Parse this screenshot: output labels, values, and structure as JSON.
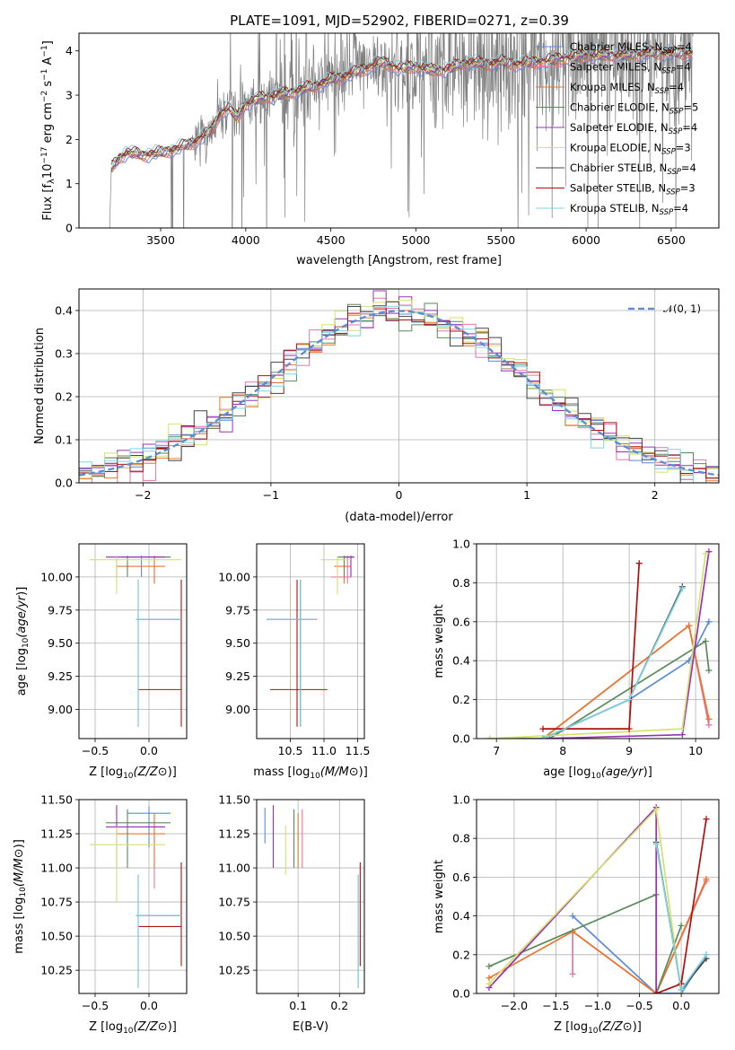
{
  "title": "PLATE=1091, MJD=52902, FIBERID=0271, z=0.39",
  "colors": {
    "Chabrier MILES": "#5b8bd6",
    "Salpeter MILES": "#e377a8",
    "Kroupa MILES": "#e9762d",
    "Chabrier ELODIE": "#5a8a5a",
    "Salpeter ELODIE": "#9b30b8",
    "Kroupa ELODIE": "#d4e26a",
    "Chabrier STELIB": "#444444",
    "Salpeter STELIB": "#b01010",
    "Kroupa STELIB": "#7fd4e0",
    "data": "#808080",
    "gauss": "#5b8bd6"
  },
  "legend_spectrum": [
    {
      "model": "Chabrier MILES",
      "sub": "SSP",
      "n": "4"
    },
    {
      "model": "Salpeter MILES",
      "sub": "SSP",
      "n": "4"
    },
    {
      "model": "Kroupa MILES",
      "sub": "SSP",
      "n": "4"
    },
    {
      "model": "Chabrier ELODIE",
      "sub": "SSP",
      "n": "5"
    },
    {
      "model": "Salpeter ELODIE",
      "sub": "SSP",
      "n": "4"
    },
    {
      "model": "Kroupa ELODIE",
      "sub": "SSP",
      "n": "3"
    },
    {
      "model": "Chabrier STELIB",
      "sub": "SSP",
      "n": "4"
    },
    {
      "model": "Salpeter STELIB",
      "sub": "SSP",
      "n": "3"
    },
    {
      "model": "Kroupa STELIB",
      "sub": "SSP",
      "n": "4"
    }
  ],
  "legend_hist": "𝒩(0, 1)",
  "chart_data": [
    {
      "id": "spectrum",
      "type": "line",
      "xlabel": "wavelength [Angstrom, rest frame]",
      "ylabel": "Flux [f",
      "xlim": [
        3020,
        6780
      ],
      "ylim": [
        0,
        4.4
      ],
      "xticks": [
        3500,
        4000,
        4500,
        5000,
        5500,
        6000,
        6500
      ],
      "yticks": [
        0,
        1,
        2,
        3,
        4
      ],
      "data_start": 3200,
      "model_continuum": [
        [
          3200,
          0.0
        ],
        [
          3210,
          1.35
        ],
        [
          3260,
          1.6
        ],
        [
          3300,
          1.7
        ],
        [
          3400,
          1.65
        ],
        [
          3500,
          1.7
        ],
        [
          3600,
          1.8
        ],
        [
          3700,
          1.95
        ],
        [
          3800,
          2.2
        ],
        [
          3850,
          2.6
        ],
        [
          3900,
          2.7
        ],
        [
          3950,
          2.5
        ],
        [
          4000,
          2.8
        ],
        [
          4100,
          2.95
        ],
        [
          4200,
          3.0
        ],
        [
          4300,
          3.1
        ],
        [
          4400,
          3.2
        ],
        [
          4500,
          3.35
        ],
        [
          4600,
          3.45
        ],
        [
          4700,
          3.6
        ],
        [
          4800,
          3.75
        ],
        [
          4900,
          3.6
        ],
        [
          5000,
          3.65
        ],
        [
          5100,
          3.55
        ],
        [
          5200,
          3.6
        ],
        [
          5300,
          3.75
        ],
        [
          5400,
          3.7
        ],
        [
          5500,
          3.75
        ],
        [
          5600,
          3.7
        ],
        [
          5700,
          3.75
        ],
        [
          5800,
          3.8
        ],
        [
          5900,
          3.85
        ],
        [
          6000,
          3.9
        ],
        [
          6200,
          3.9
        ],
        [
          6400,
          3.95
        ],
        [
          6600,
          3.95
        ]
      ]
    },
    {
      "id": "residual_hist",
      "type": "histogram",
      "xlabel": "(data-model)/error",
      "ylabel": "Normed distribution",
      "xlim": [
        -2.5,
        2.5
      ],
      "ylim": [
        0,
        0.45
      ],
      "xticks": [
        -2,
        -1,
        0,
        1,
        2
      ],
      "yticks": [
        0.0,
        0.1,
        0.2,
        0.3,
        0.4
      ],
      "bin_width": 0.1
    },
    {
      "id": "age_vs_Z",
      "type": "errorbar",
      "xlabel": "Z [log",
      "ylabel": "age  [log",
      "xlim": [
        -0.65,
        0.35
      ],
      "ylim": [
        8.78,
        10.25
      ],
      "xticks": [
        -0.5,
        0.0
      ],
      "yticks": [
        9.0,
        9.25,
        9.5,
        9.75,
        10.0
      ],
      "points": [
        {
          "m": "Chabrier MILES",
          "x": -0.07,
          "xl": -0.3,
          "xh": 0.2,
          "y": 10.15,
          "yl": 10.0,
          "yh": 10.16
        },
        {
          "m": "Salpeter MILES",
          "x": 0.05,
          "xl": -0.2,
          "xh": 0.15,
          "y": 10.15,
          "yl": 9.95,
          "yh": 10.16
        },
        {
          "m": "Kroupa MILES",
          "x": 0.05,
          "xl": -0.3,
          "xh": 0.15,
          "y": 10.08,
          "yl": 9.95,
          "yh": 10.16
        },
        {
          "m": "Chabrier ELODIE",
          "x": -0.2,
          "xl": -0.4,
          "xh": 0.2,
          "y": 10.15,
          "yl": 10.0,
          "yh": 10.16
        },
        {
          "m": "Salpeter ELODIE",
          "x": -0.3,
          "xl": -0.4,
          "xh": 0.15,
          "y": 10.15,
          "yl": 10.0,
          "yh": 10.16
        },
        {
          "m": "Kroupa ELODIE",
          "x": -0.3,
          "xl": -0.55,
          "xh": 0.3,
          "y": 10.13,
          "yl": 9.87,
          "yh": 10.16
        },
        {
          "m": "Chabrier STELIB",
          "x": -0.1,
          "xl": -0.12,
          "xh": 0.3,
          "y": 9.68,
          "yl": 8.87,
          "yh": 9.98
        },
        {
          "m": "Salpeter STELIB",
          "x": 0.3,
          "xl": -0.1,
          "xh": 0.3,
          "y": 9.15,
          "yl": 8.87,
          "yh": 9.98
        },
        {
          "m": "Kroupa STELIB",
          "x": -0.1,
          "xl": -0.12,
          "xh": 0.3,
          "y": 9.68,
          "yl": 8.87,
          "yh": 9.98
        }
      ]
    },
    {
      "id": "age_vs_mass",
      "type": "errorbar",
      "xlabel": "mass [log",
      "ylabel": "",
      "xlim": [
        10.0,
        11.6
      ],
      "ylim": [
        8.78,
        10.25
      ],
      "xticks": [
        10.5,
        11.0,
        11.5
      ],
      "yticks": [
        9.0,
        9.25,
        9.5,
        9.75,
        10.0
      ],
      "points": [
        {
          "m": "Chabrier MILES",
          "x": 11.4,
          "xl": 11.2,
          "xh": 11.45,
          "y": 10.15,
          "yl": 10.0,
          "yh": 10.16
        },
        {
          "m": "Salpeter MILES",
          "x": 11.35,
          "xl": 11.1,
          "xh": 11.4,
          "y": 10.0,
          "yl": 9.95,
          "yh": 10.16
        },
        {
          "m": "Kroupa MILES",
          "x": 11.3,
          "xl": 11.15,
          "xh": 11.4,
          "y": 10.08,
          "yl": 9.95,
          "yh": 10.16
        },
        {
          "m": "Chabrier ELODIE",
          "x": 11.3,
          "xl": 11.2,
          "xh": 11.45,
          "y": 10.15,
          "yl": 10.0,
          "yh": 10.16
        },
        {
          "m": "Salpeter ELODIE",
          "x": 11.4,
          "xl": 11.3,
          "xh": 11.45,
          "y": 10.15,
          "yl": 10.0,
          "yh": 10.16
        },
        {
          "m": "Kroupa ELODIE",
          "x": 11.2,
          "xl": 10.95,
          "xh": 11.4,
          "y": 10.13,
          "yl": 9.87,
          "yh": 10.16
        },
        {
          "m": "Chabrier STELIB",
          "x": 10.65,
          "xl": 10.15,
          "xh": 10.9,
          "y": 9.68,
          "yl": 8.87,
          "yh": 9.98
        },
        {
          "m": "Salpeter STELIB",
          "x": 10.6,
          "xl": 10.2,
          "xh": 11.05,
          "y": 9.15,
          "yl": 8.87,
          "yh": 9.98
        },
        {
          "m": "Kroupa STELIB",
          "x": 10.65,
          "xl": 10.15,
          "xh": 10.9,
          "y": 9.68,
          "yl": 8.87,
          "yh": 9.98
        }
      ]
    },
    {
      "id": "massweight_vs_age",
      "type": "line",
      "xlabel": "age  [log",
      "ylabel": "mass weight",
      "xlim": [
        6.7,
        10.35
      ],
      "ylim": [
        0,
        1.0
      ],
      "xticks": [
        7,
        8,
        9,
        10
      ],
      "yticks": [
        0.0,
        0.2,
        0.4,
        0.6,
        0.8,
        1.0
      ],
      "series": [
        {
          "m": "Chabrier MILES",
          "pts": [
            [
              7.7,
              0.0
            ],
            [
              9.0,
              0.2
            ],
            [
              9.9,
              0.4
            ],
            [
              10.2,
              0.6
            ]
          ]
        },
        {
          "m": "Salpeter MILES",
          "pts": [
            [
              7.7,
              0.0
            ],
            [
              9.9,
              0.58
            ],
            [
              10.2,
              0.07
            ]
          ]
        },
        {
          "m": "Kroupa MILES",
          "pts": [
            [
              7.7,
              0.0
            ],
            [
              9.9,
              0.58
            ],
            [
              10.2,
              0.1
            ]
          ]
        },
        {
          "m": "Chabrier ELODIE",
          "pts": [
            [
              6.9,
              0.0
            ],
            [
              7.8,
              0.0
            ],
            [
              10.15,
              0.5
            ],
            [
              10.2,
              0.35
            ]
          ]
        },
        {
          "m": "Salpeter ELODIE",
          "pts": [
            [
              7.7,
              0.0
            ],
            [
              9.8,
              0.02
            ],
            [
              10.2,
              0.96
            ]
          ]
        },
        {
          "m": "Kroupa ELODIE",
          "pts": [
            [
              6.9,
              0.0
            ],
            [
              9.8,
              0.05
            ],
            [
              10.15,
              0.95
            ]
          ]
        },
        {
          "m": "Chabrier STELIB",
          "pts": [
            [
              7.7,
              0.0
            ],
            [
              9.0,
              0.2
            ],
            [
              9.8,
              0.78
            ]
          ]
        },
        {
          "m": "Salpeter STELIB",
          "pts": [
            [
              7.7,
              0.05
            ],
            [
              9.0,
              0.05
            ],
            [
              9.15,
              0.9
            ]
          ]
        },
        {
          "m": "Kroupa STELIB",
          "pts": [
            [
              7.7,
              0.0
            ],
            [
              9.0,
              0.2
            ],
            [
              9.8,
              0.77
            ]
          ]
        }
      ]
    },
    {
      "id": "mass_vs_Z",
      "type": "errorbar",
      "xlabel": "Z [log",
      "ylabel": "mass [log",
      "xlim": [
        -0.65,
        0.35
      ],
      "ylim": [
        10.08,
        11.5
      ],
      "xticks": [
        -0.5,
        0.0
      ],
      "yticks": [
        10.25,
        10.5,
        10.75,
        11.0,
        11.25,
        11.5
      ],
      "points": [
        {
          "m": "Chabrier MILES",
          "x": 0.0,
          "xl": -0.2,
          "xh": 0.2,
          "y": 11.4,
          "yl": 11.15,
          "yh": 11.45
        },
        {
          "m": "Salpeter MILES",
          "x": 0.05,
          "xl": -0.2,
          "xh": 0.15,
          "y": 11.3,
          "yl": 10.85,
          "yh": 11.4
        },
        {
          "m": "Kroupa MILES",
          "x": 0.05,
          "xl": -0.3,
          "xh": 0.15,
          "y": 11.25,
          "yl": 11.0,
          "yh": 11.4
        },
        {
          "m": "Chabrier ELODIE",
          "x": -0.2,
          "xl": -0.4,
          "xh": 0.2,
          "y": 11.33,
          "yl": 11.0,
          "yh": 11.43
        },
        {
          "m": "Salpeter ELODIE",
          "x": -0.3,
          "xl": -0.4,
          "xh": 0.15,
          "y": 11.3,
          "yl": 11.0,
          "yh": 11.46
        },
        {
          "m": "Kroupa ELODIE",
          "x": -0.3,
          "xl": -0.55,
          "xh": 0.15,
          "y": 11.17,
          "yl": 10.75,
          "yh": 11.3
        },
        {
          "m": "Chabrier STELIB",
          "x": -0.1,
          "xl": -0.12,
          "xh": 0.3,
          "y": 10.65,
          "yl": 10.12,
          "yh": 10.95
        },
        {
          "m": "Salpeter STELIB",
          "x": 0.3,
          "xl": -0.1,
          "xh": 0.3,
          "y": 10.57,
          "yl": 10.28,
          "yh": 11.04
        },
        {
          "m": "Kroupa STELIB",
          "x": -0.1,
          "xl": -0.12,
          "xh": 0.3,
          "y": 10.65,
          "yl": 10.12,
          "yh": 10.95
        }
      ]
    },
    {
      "id": "mass_vs_ebv",
      "type": "errorbar",
      "xlabel": "E(B-V)",
      "ylabel": "",
      "xlim": [
        0.0,
        0.26
      ],
      "ylim": [
        10.08,
        11.5
      ],
      "xticks": [
        0.1,
        0.2
      ],
      "yticks": [
        10.25,
        10.5,
        10.75,
        11.0,
        11.25,
        11.5
      ],
      "points": [
        {
          "m": "Chabrier MILES",
          "x": 0.02,
          "xl": 0.02,
          "xh": 0.02,
          "y": 11.3,
          "yl": 11.18,
          "yh": 11.44
        },
        {
          "m": "Salpeter MILES",
          "x": 0.11,
          "xl": 0.11,
          "xh": 0.11,
          "y": 11.3,
          "yl": 11.0,
          "yh": 11.43
        },
        {
          "m": "Kroupa MILES",
          "x": 0.1,
          "xl": 0.1,
          "xh": 0.1,
          "y": 11.3,
          "yl": 11.0,
          "yh": 11.4
        },
        {
          "m": "Chabrier ELODIE",
          "x": 0.09,
          "xl": 0.09,
          "xh": 0.09,
          "y": 11.3,
          "yl": 11.0,
          "yh": 11.43
        },
        {
          "m": "Salpeter ELODIE",
          "x": 0.04,
          "xl": 0.04,
          "xh": 0.04,
          "y": 11.3,
          "yl": 11.0,
          "yh": 11.46
        },
        {
          "m": "Kroupa ELODIE",
          "x": 0.07,
          "xl": 0.07,
          "xh": 0.07,
          "y": 11.2,
          "yl": 10.95,
          "yh": 11.31
        },
        {
          "m": "Chabrier STELIB",
          "x": 0.245,
          "xl": 0.245,
          "xh": 0.245,
          "y": 10.6,
          "yl": 10.12,
          "yh": 10.95
        },
        {
          "m": "Salpeter STELIB",
          "x": 0.25,
          "xl": 0.25,
          "xh": 0.25,
          "y": 10.6,
          "yl": 10.28,
          "yh": 11.04
        },
        {
          "m": "Kroupa STELIB",
          "x": 0.245,
          "xl": 0.245,
          "xh": 0.245,
          "y": 10.6,
          "yl": 10.12,
          "yh": 10.95
        }
      ]
    },
    {
      "id": "massweight_vs_Z",
      "type": "line",
      "xlabel": "Z [log",
      "ylabel": "mass weight",
      "xlim": [
        -2.45,
        0.45
      ],
      "ylim": [
        0,
        1.0
      ],
      "xticks": [
        -2.0,
        -1.5,
        -1.0,
        -0.5,
        0.0
      ],
      "yticks": [
        0.0,
        0.2,
        0.4,
        0.6,
        0.8,
        1.0
      ],
      "series": [
        {
          "m": "Chabrier MILES",
          "pts": [
            [
              -1.3,
              0.4
            ],
            [
              -0.3,
              0.0
            ],
            [
              0.0,
              0.0
            ],
            [
              0.3,
              0.2
            ]
          ]
        },
        {
          "m": "Salpeter MILES",
          "pts": [
            [
              -1.3,
              0.1
            ],
            [
              -1.3,
              0.32
            ],
            [
              -0.3,
              0.0
            ],
            [
              0.3,
              0.58
            ]
          ]
        },
        {
          "m": "Kroupa MILES",
          "pts": [
            [
              -2.3,
              0.08
            ],
            [
              -1.3,
              0.32
            ],
            [
              -0.3,
              0.0
            ],
            [
              0.3,
              0.59
            ]
          ]
        },
        {
          "m": "Chabrier ELODIE",
          "pts": [
            [
              -2.3,
              0.14
            ],
            [
              -0.3,
              0.51
            ],
            [
              -0.3,
              0.0
            ],
            [
              0.0,
              0.35
            ]
          ]
        },
        {
          "m": "Salpeter ELODIE",
          "pts": [
            [
              -2.3,
              0.03
            ],
            [
              -0.3,
              0.96
            ],
            [
              -0.3,
              0.0
            ]
          ]
        },
        {
          "m": "Kroupa ELODIE",
          "pts": [
            [
              -2.3,
              0.05
            ],
            [
              -0.3,
              0.95
            ],
            [
              0.0,
              0.0
            ]
          ]
        },
        {
          "m": "Chabrier STELIB",
          "pts": [
            [
              -0.3,
              0.78
            ],
            [
              0.0,
              0.02
            ],
            [
              0.3,
              0.18
            ]
          ]
        },
        {
          "m": "Salpeter STELIB",
          "pts": [
            [
              -0.3,
              0.0
            ],
            [
              0.0,
              0.05
            ],
            [
              0.3,
              0.9
            ]
          ]
        },
        {
          "m": "Kroupa STELIB",
          "pts": [
            [
              -0.3,
              0.77
            ],
            [
              0.0,
              0.02
            ],
            [
              0.3,
              0.2
            ]
          ]
        }
      ]
    }
  ]
}
